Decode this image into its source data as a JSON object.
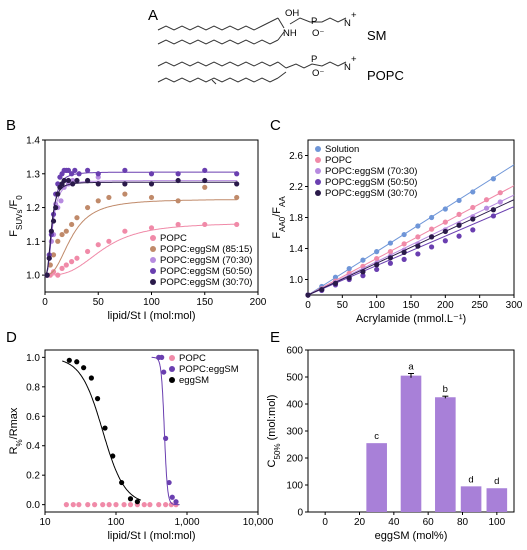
{
  "panels": {
    "A": "A",
    "B": "B",
    "C": "C",
    "D": "D",
    "E": "E"
  },
  "panelA": {
    "mol1": "SM",
    "mol2": "POPC",
    "atoms": {
      "oh": "OH",
      "nh": "NH",
      "o": "O",
      "p": "P",
      "n": "N",
      "ominus": "O⁻",
      "plus": "+"
    }
  },
  "chart_data": [
    {
      "panel": "B",
      "type": "scatter",
      "xlabel": "lipid/St I (mol:mol)",
      "ylabel": "F_SUVs/F_0",
      "xlim": [
        0,
        200
      ],
      "ylim": [
        0.95,
        1.4
      ],
      "xticks": [
        0,
        50,
        100,
        150,
        200
      ],
      "yticks": [
        1.0,
        1.1,
        1.2,
        1.3,
        1.4
      ],
      "legend_position": "bottom-right",
      "series": [
        {
          "name": "POPC",
          "color": "#f08aa8",
          "x": [
            2,
            5,
            8,
            12,
            16,
            20,
            25,
            30,
            40,
            50,
            60,
            75,
            100,
            125,
            150,
            180
          ],
          "y": [
            1.0,
            1.0,
            1.01,
            1.0,
            1.02,
            1.03,
            1.04,
            1.05,
            1.07,
            1.09,
            1.1,
            1.13,
            1.14,
            1.15,
            1.15,
            1.15
          ],
          "fit": {
            "base": 1.0,
            "top": 1.155,
            "mid": 55,
            "slope": 3
          }
        },
        {
          "name": "POPC:eggSM (85:15)",
          "color": "#c08a6a",
          "x": [
            2,
            5,
            8,
            12,
            16,
            20,
            25,
            30,
            40,
            50,
            60,
            75,
            100,
            125,
            150,
            180
          ],
          "y": [
            1.0,
            1.03,
            1.06,
            1.1,
            1.12,
            1.13,
            1.15,
            1.17,
            1.2,
            1.22,
            1.23,
            1.24,
            1.23,
            1.22,
            1.26,
            1.23
          ],
          "fit": {
            "base": 1.0,
            "top": 1.225,
            "mid": 25,
            "slope": 2.5
          }
        },
        {
          "name": "POPC:eggSM (70:30)",
          "color": "#b78be0",
          "x": [
            2,
            4,
            6,
            8,
            10,
            12,
            15,
            18,
            22,
            26,
            30,
            40,
            50
          ],
          "y": [
            1.0,
            1.05,
            1.1,
            1.12,
            1.21,
            1.2,
            1.22,
            1.26,
            1.27,
            1.28,
            1.28,
            1.28,
            1.29
          ],
          "fit": {
            "base": 1.0,
            "top": 1.28,
            "mid": 7,
            "slope": 2.6
          }
        },
        {
          "name": "POPC:eggSM (50:50)",
          "color": "#6a3fb0",
          "x": [
            2,
            4,
            6,
            8,
            10,
            12,
            14,
            16,
            18,
            20,
            22,
            25,
            28,
            32,
            40,
            50,
            75,
            100,
            125,
            150,
            180
          ],
          "y": [
            1.0,
            1.06,
            1.12,
            1.18,
            1.24,
            1.27,
            1.29,
            1.3,
            1.31,
            1.31,
            1.31,
            1.3,
            1.31,
            1.3,
            1.31,
            1.3,
            1.31,
            1.3,
            1.3,
            1.31,
            1.3
          ],
          "fit": {
            "base": 1.0,
            "top": 1.305,
            "mid": 7,
            "slope": 2.8
          }
        },
        {
          "name": "POPC:eggSM (30:70)",
          "color": "#2a1a4a",
          "x": [
            2,
            4,
            6,
            8,
            10,
            12,
            14,
            16,
            18,
            22,
            26,
            30,
            40,
            50,
            75,
            100,
            125,
            150,
            180
          ],
          "y": [
            1.0,
            1.05,
            1.13,
            1.16,
            1.2,
            1.24,
            1.26,
            1.27,
            1.28,
            1.28,
            1.27,
            1.28,
            1.28,
            1.27,
            1.27,
            1.27,
            1.28,
            1.28,
            1.27
          ],
          "fit": {
            "base": 1.0,
            "top": 1.275,
            "mid": 6,
            "slope": 2.8
          }
        }
      ]
    },
    {
      "panel": "C",
      "type": "scatter",
      "xlabel": "Acrylamide (mmol.L⁻¹)",
      "ylabel": "F_AA0/F_AA",
      "xlim": [
        0,
        300
      ],
      "ylim": [
        0.8,
        2.8
      ],
      "xticks": [
        0,
        50,
        100,
        150,
        200,
        250,
        300
      ],
      "yticks": [
        1.0,
        1.4,
        1.8,
        2.2,
        2.6
      ],
      "legend_position": "top-left",
      "series": [
        {
          "name": "Solution",
          "color": "#6f96d8",
          "slope": 0.0056,
          "x": [
            0,
            20,
            40,
            60,
            80,
            100,
            120,
            140,
            160,
            180,
            200,
            220,
            240,
            270
          ],
          "y": [
            0.8,
            0.91,
            1.03,
            1.14,
            1.25,
            1.36,
            1.47,
            1.58,
            1.69,
            1.8,
            1.91,
            2.02,
            2.13,
            2.3
          ]
        },
        {
          "name": "POPC",
          "color": "#f08aa8",
          "slope": 0.0047,
          "x": [
            0,
            20,
            40,
            60,
            80,
            100,
            120,
            140,
            160,
            180,
            200,
            220,
            240,
            260,
            280
          ],
          "y": [
            0.8,
            0.88,
            0.98,
            1.08,
            1.17,
            1.27,
            1.36,
            1.46,
            1.55,
            1.65,
            1.74,
            1.84,
            1.93,
            2.03,
            2.12
          ]
        },
        {
          "name": "POPC:eggSM (70:30)",
          "color": "#b78be0",
          "slope": 0.0043,
          "x": [
            0,
            20,
            40,
            60,
            80,
            100,
            120,
            140,
            160,
            180,
            200,
            220,
            240,
            260,
            280
          ],
          "y": [
            0.8,
            0.87,
            0.96,
            1.04,
            1.12,
            1.21,
            1.3,
            1.38,
            1.46,
            1.55,
            1.64,
            1.72,
            1.81,
            1.92,
            2.0
          ]
        },
        {
          "name": "POPC:eggSM (50:50)",
          "color": "#6a3fb0",
          "slope": 0.0038,
          "x": [
            0,
            20,
            40,
            60,
            80,
            100,
            120,
            140,
            160,
            180,
            200,
            220,
            240,
            270
          ],
          "y": [
            0.8,
            0.86,
            0.93,
            1.0,
            1.05,
            1.13,
            1.21,
            1.26,
            1.33,
            1.42,
            1.5,
            1.56,
            1.64,
            1.82
          ]
        },
        {
          "name": "POPC:eggSM (30:70)",
          "color": "#2a1a4a",
          "slope": 0.0041,
          "x": [
            0,
            20,
            40,
            60,
            80,
            100,
            120,
            140,
            160,
            180,
            200,
            220,
            240,
            270
          ],
          "y": [
            0.8,
            0.87,
            0.95,
            1.02,
            1.1,
            1.19,
            1.28,
            1.35,
            1.43,
            1.55,
            1.62,
            1.7,
            1.78,
            1.9
          ]
        }
      ]
    },
    {
      "panel": "D",
      "type": "scatter",
      "xlabel": "lipid/St I (mol:mol)",
      "ylabel": "R%/Rmax",
      "xscale": "log",
      "xlim": [
        10,
        10000
      ],
      "ylim": [
        -0.05,
        1.05
      ],
      "xticks": [
        10,
        100,
        1000,
        10000
      ],
      "xticklabels": [
        "10",
        "100",
        "1,000",
        "10,000"
      ],
      "yticks": [
        0.0,
        0.2,
        0.4,
        0.6,
        0.8,
        1.0
      ],
      "legend_position": "top-right",
      "series": [
        {
          "name": "POPC",
          "color": "#f08aa8",
          "x": [
            20,
            25,
            30,
            40,
            50,
            65,
            80,
            100,
            130,
            160,
            200,
            250,
            300,
            400,
            500,
            600,
            700
          ],
          "y": [
            0,
            0,
            0,
            0,
            0,
            0,
            0,
            0,
            0,
            0,
            0,
            0,
            0,
            0,
            0,
            0,
            0
          ]
        },
        {
          "name": "POPC:eggSM",
          "color": "#6a3fb0",
          "x": [
            400,
            440,
            470,
            500,
            560,
            620,
            700
          ],
          "y": [
            1.0,
            1.0,
            0.9,
            0.45,
            0.15,
            0.05,
            0.02
          ],
          "fit": {
            "mid": 480,
            "n": 20
          }
        },
        {
          "name": "eggSM",
          "color": "#000000",
          "x": [
            22,
            28,
            35,
            45,
            55,
            70,
            90,
            120,
            160,
            200
          ],
          "y": [
            0.98,
            0.97,
            0.93,
            0.86,
            0.72,
            0.52,
            0.33,
            0.15,
            0.04,
            0.02
          ],
          "fit": {
            "mid": 65,
            "n": 2.8
          }
        }
      ]
    },
    {
      "panel": "E",
      "type": "bar",
      "xlabel": "eggSM (mol%)",
      "ylabel": "C50% (mol:mol)",
      "xlim": [
        -10,
        110
      ],
      "ylim": [
        0,
        600
      ],
      "xticks": [
        0,
        20,
        40,
        60,
        80,
        100
      ],
      "yticks": [
        0,
        100,
        200,
        300,
        400,
        500,
        600
      ],
      "color": "#a880d8",
      "bars": [
        {
          "x": 30,
          "value": 255,
          "error": 0,
          "letter": "c"
        },
        {
          "x": 50,
          "value": 505,
          "error": 8,
          "letter": "a"
        },
        {
          "x": 70,
          "value": 425,
          "error": 4,
          "letter": "b"
        },
        {
          "x": 85,
          "value": 95,
          "error": 0,
          "letter": "d"
        },
        {
          "x": 100,
          "value": 88,
          "error": 0,
          "letter": "d"
        }
      ]
    }
  ]
}
